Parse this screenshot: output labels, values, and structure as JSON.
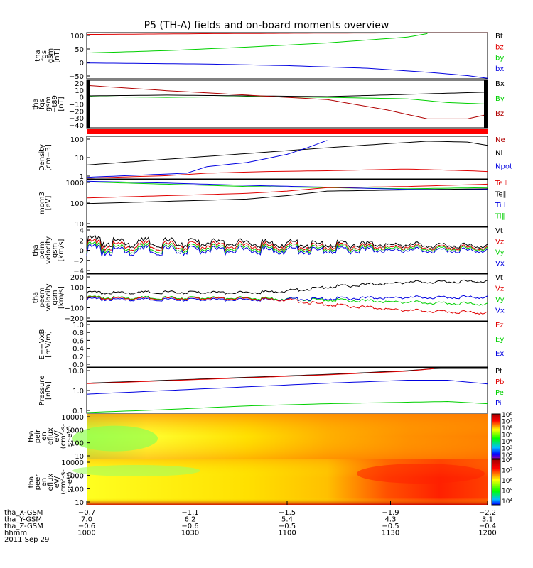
{
  "title": "P5 (TH-A) fields and on-board moments overview",
  "colors": {
    "black": "#000000",
    "red": "#e00000",
    "green": "#00d000",
    "blue": "#0000e0",
    "darkred": "#b00000"
  },
  "chart_data": [
    {
      "id": "p1",
      "type": "line",
      "ylabel": [
        "tha",
        "fgs",
        "gsm",
        "[nT]"
      ],
      "yticks": [
        "100",
        "50",
        "0",
        "−50"
      ],
      "ylim": [
        -70,
        105
      ],
      "legend": [
        {
          "name": "Bt",
          "color": "black"
        },
        {
          "name": "bz",
          "color": "red"
        },
        {
          "name": "by",
          "color": "green"
        },
        {
          "name": "bx",
          "color": "blue"
        }
      ],
      "series": [
        {
          "name": "bz",
          "color": "red",
          "x": [
            0,
            0.3,
            0.6,
            0.85,
            1
          ],
          "y": [
            98,
            101,
            103,
            104,
            104
          ]
        },
        {
          "name": "by",
          "color": "green",
          "x": [
            0,
            0.2,
            0.4,
            0.6,
            0.8,
            0.86
          ],
          "y": [
            28,
            37,
            50,
            66,
            88,
            104
          ]
        },
        {
          "name": "bx",
          "color": "blue",
          "x": [
            0,
            0.3,
            0.5,
            0.7,
            0.85,
            0.95,
            1
          ],
          "y": [
            -10,
            -14,
            -20,
            -30,
            -45,
            -58,
            -68
          ]
        }
      ]
    },
    {
      "id": "p2",
      "type": "line",
      "ylabel": [
        "tha",
        "fgs",
        "gsm",
        "−t89",
        "[nT]"
      ],
      "yticks": [
        "20",
        "10",
        "0",
        "−10",
        "−20",
        "−30",
        "−40"
      ],
      "ylim": [
        -42,
        22
      ],
      "legend": [
        {
          "name": "Bx",
          "color": "black"
        },
        {
          "name": "By",
          "color": "green"
        },
        {
          "name": "Bz",
          "color": "darkred"
        }
      ],
      "series": [
        {
          "name": "Bx",
          "color": "black",
          "x": [
            0,
            0.2,
            0.4,
            0.6,
            0.8,
            1
          ],
          "y": [
            1,
            2,
            1,
            0,
            3,
            6
          ]
        },
        {
          "name": "By",
          "color": "green",
          "x": [
            0,
            0.2,
            0.4,
            0.6,
            0.8,
            0.9,
            1
          ],
          "y": [
            0,
            -1,
            0,
            -1,
            -3,
            -8,
            -10
          ]
        },
        {
          "name": "Bz",
          "color": "darkred",
          "x": [
            0,
            0.2,
            0.4,
            0.6,
            0.75,
            0.85,
            0.95,
            1
          ],
          "y": [
            15,
            8,
            2,
            -4,
            -18,
            -30,
            -30,
            -24
          ]
        }
      ]
    },
    {
      "id": "p3",
      "type": "line",
      "ylabel": [
        "Density",
        "[cm−3]"
      ],
      "yticks": [
        "100",
        "10",
        "1"
      ],
      "ylim": [
        0,
        2.6
      ],
      "legend": [
        {
          "name": "Ne",
          "color": "darkred"
        },
        {
          "name": "Ni",
          "color": "black"
        },
        {
          "name": "Npot",
          "color": "blue"
        }
      ],
      "series": [
        {
          "name": "Ni",
          "color": "black",
          "x": [
            0,
            0.2,
            0.4,
            0.6,
            0.75,
            0.85,
            0.95,
            1
          ],
          "y": [
            0.85,
            1.2,
            1.55,
            1.9,
            2.15,
            2.3,
            2.25,
            2.05
          ]
        },
        {
          "name": "Ne",
          "color": "red",
          "x": [
            0,
            0.2,
            0.3,
            0.45,
            0.6,
            0.8,
            0.95,
            1
          ],
          "y": [
            0.05,
            0.2,
            0.35,
            0.45,
            0.5,
            0.6,
            0.5,
            0.45
          ]
        },
        {
          "name": "Npot",
          "color": "blue",
          "x": [
            0,
            0.15,
            0.25,
            0.3,
            0.4,
            0.5,
            0.55,
            0.6
          ],
          "y": [
            0.1,
            0.25,
            0.35,
            0.75,
            1.0,
            1.5,
            1.9,
            2.35
          ]
        }
      ]
    },
    {
      "id": "p4",
      "type": "line",
      "ylabel": [
        "mom3",
        "[eV]"
      ],
      "yticks": [
        "1000",
        "100",
        "10"
      ],
      "ylim": [
        1,
        3.05
      ],
      "legend": [
        {
          "name": "Te⊥",
          "color": "red"
        },
        {
          "name": "Te‖",
          "color": "black"
        },
        {
          "name": "Ti⊥",
          "color": "blue"
        },
        {
          "name": "Ti‖",
          "color": "green"
        }
      ],
      "series": [
        {
          "name": "Ti‖",
          "color": "green",
          "x": [
            0,
            0.2,
            0.4,
            0.6,
            0.8,
            1
          ],
          "y": [
            2.95,
            2.85,
            2.75,
            2.7,
            2.65,
            2.7
          ]
        },
        {
          "name": "Ti⊥",
          "color": "blue",
          "x": [
            0,
            0.2,
            0.4,
            0.6,
            0.8,
            1
          ],
          "y": [
            2.98,
            2.9,
            2.8,
            2.72,
            2.62,
            2.62
          ]
        },
        {
          "name": "Te⊥",
          "color": "red",
          "x": [
            0,
            0.2,
            0.4,
            0.5,
            0.6,
            0.8,
            1
          ],
          "y": [
            2.25,
            2.35,
            2.45,
            2.55,
            2.7,
            2.75,
            2.85
          ]
        },
        {
          "name": "Te‖",
          "color": "black",
          "x": [
            0,
            0.2,
            0.4,
            0.5,
            0.6,
            0.8,
            1
          ],
          "y": [
            2.0,
            2.1,
            2.2,
            2.35,
            2.55,
            2.6,
            2.65
          ]
        }
      ]
    },
    {
      "id": "p5",
      "type": "line",
      "ylabel": [
        "tha",
        "peim",
        "velocity",
        "gsm",
        "[km/s]"
      ],
      "yticks": [
        "4",
        "2",
        "0",
        "−2",
        "−4"
      ],
      "ylim": [
        -4,
        4
      ],
      "legend": [
        {
          "name": "Vt",
          "color": "black"
        },
        {
          "name": "Vz",
          "color": "red"
        },
        {
          "name": "Vy",
          "color": "green"
        },
        {
          "name": "Vx",
          "color": "blue"
        }
      ],
      "series": [
        {
          "name": "Vt",
          "color": "black",
          "x": [
            0,
            1
          ],
          "y": [
            1.5,
            0.8
          ]
        },
        {
          "name": "Vz",
          "color": "red",
          "x": [
            0,
            1
          ],
          "y": [
            0.9,
            0.5
          ]
        },
        {
          "name": "Vy",
          "color": "green",
          "x": [
            0,
            1
          ],
          "y": [
            0.4,
            0.3
          ]
        },
        {
          "name": "Vx",
          "color": "blue",
          "x": [
            0,
            1
          ],
          "y": [
            0,
            0
          ]
        }
      ]
    },
    {
      "id": "p6",
      "type": "line",
      "ylabel": [
        "tha",
        "peem",
        "velocity",
        "gsm",
        "[km/s]"
      ],
      "yticks": [
        "200",
        "100",
        "0",
        "−100",
        "−200"
      ],
      "ylim": [
        -200,
        200
      ],
      "legend": [
        {
          "name": "Vt",
          "color": "black"
        },
        {
          "name": "Vz",
          "color": "red"
        },
        {
          "name": "Vy",
          "color": "green"
        },
        {
          "name": "Vx",
          "color": "blue"
        }
      ],
      "series": [
        {
          "name": "Vt",
          "color": "black",
          "x": [
            0,
            0.2,
            0.4,
            0.5,
            0.6,
            0.7,
            0.8,
            1
          ],
          "y": [
            40,
            45,
            40,
            55,
            90,
            110,
            130,
            140
          ]
        },
        {
          "name": "Vy",
          "color": "green",
          "x": [
            0,
            0.4,
            0.6,
            0.8,
            1
          ],
          "y": [
            0,
            -5,
            -20,
            -40,
            -55
          ]
        },
        {
          "name": "Vx",
          "color": "blue",
          "x": [
            0,
            0.4,
            0.6,
            0.8,
            1
          ],
          "y": [
            -15,
            -20,
            -10,
            0,
            5
          ]
        },
        {
          "name": "Vz",
          "color": "red",
          "x": [
            0,
            0.4,
            0.5,
            0.6,
            0.8,
            1
          ],
          "y": [
            -5,
            -10,
            -20,
            -60,
            -110,
            -130
          ]
        }
      ]
    },
    {
      "id": "p7",
      "type": "line",
      "ylabel": [
        "E=−VxB",
        "[mV/m]"
      ],
      "yticks": [
        "1.0",
        "0.8",
        "0.6",
        "0.4",
        "0.2",
        "0.0"
      ],
      "ylim": [
        0,
        1
      ],
      "legend": [
        {
          "name": "Ez",
          "color": "red"
        },
        {
          "name": "Ey",
          "color": "green"
        },
        {
          "name": "Ex",
          "color": "blue"
        }
      ],
      "series": []
    },
    {
      "id": "p8",
      "type": "line",
      "ylabel": [
        "Pressure",
        "[nPa]"
      ],
      "yticks": [
        "10.0",
        "1.0",
        "0.1"
      ],
      "ylim": [
        -1.5,
        1.6
      ],
      "legend": [
        {
          "name": "Pt",
          "color": "black"
        },
        {
          "name": "Pb",
          "color": "red"
        },
        {
          "name": "Pe",
          "color": "green"
        },
        {
          "name": "Pi",
          "color": "blue"
        }
      ],
      "series": [
        {
          "name": "Pt",
          "color": "black",
          "x": [
            0,
            0.2,
            0.4,
            0.6,
            0.8,
            0.87,
            1
          ],
          "y": [
            0.55,
            0.75,
            0.95,
            1.15,
            1.4,
            1.55,
            1.55
          ]
        },
        {
          "name": "Pb",
          "color": "red",
          "x": [
            0,
            0.2,
            0.4,
            0.6,
            0.8,
            0.87
          ],
          "y": [
            0.52,
            0.72,
            0.92,
            1.12,
            1.37,
            1.55
          ]
        },
        {
          "name": "Pi",
          "color": "blue",
          "x": [
            0,
            0.2,
            0.4,
            0.6,
            0.8,
            0.9,
            1
          ],
          "y": [
            -0.2,
            0.05,
            0.3,
            0.55,
            0.75,
            0.75,
            0.5
          ]
        },
        {
          "name": "Pe",
          "color": "green",
          "x": [
            0,
            0.2,
            0.4,
            0.6,
            0.8,
            0.9,
            1
          ],
          "y": [
            -1.45,
            -1.25,
            -1.0,
            -0.85,
            -0.75,
            -0.7,
            -0.85
          ]
        }
      ]
    },
    {
      "id": "p9",
      "type": "heatmap",
      "ylabel": [
        "tha",
        "peir",
        "en",
        "eflux",
        "eV/",
        "(cm²-s-",
        "sr-eV)"
      ],
      "yticks": [
        "10000",
        "1000",
        "100",
        "10"
      ],
      "colorbar": [
        "10⁸",
        "10⁷",
        "10⁶",
        "10⁵",
        "10⁴",
        "10³",
        "10²"
      ]
    },
    {
      "id": "p10",
      "type": "heatmap",
      "ylabel": [
        "tha",
        "peer",
        "en",
        "eflux",
        "eV/",
        "(cm²-s-",
        "sr-eV)"
      ],
      "yticks": [
        "10000",
        "1000",
        "100",
        "10"
      ],
      "colorbar": [
        "10⁸",
        "10⁷",
        "10⁶",
        "10⁵",
        "10⁴"
      ]
    }
  ],
  "xaxis": {
    "rows": [
      {
        "label": "tha_X-GSM",
        "values": [
          "−0.7",
          "−1.1",
          "−1.5",
          "−1.9",
          "−2.2"
        ]
      },
      {
        "label": "tha_Y-GSM",
        "values": [
          "7.0",
          "6.2",
          "5.4",
          "4.3",
          "3.1"
        ]
      },
      {
        "label": "tha_Z-GSM",
        "values": [
          "−0.6",
          "−0.6",
          "−0.5",
          "−0.5",
          "−0.4"
        ]
      },
      {
        "label": "hhmm",
        "values": [
          "1000",
          "1030",
          "1100",
          "1130",
          "1200"
        ]
      }
    ],
    "date": "2011 Sep 29"
  }
}
